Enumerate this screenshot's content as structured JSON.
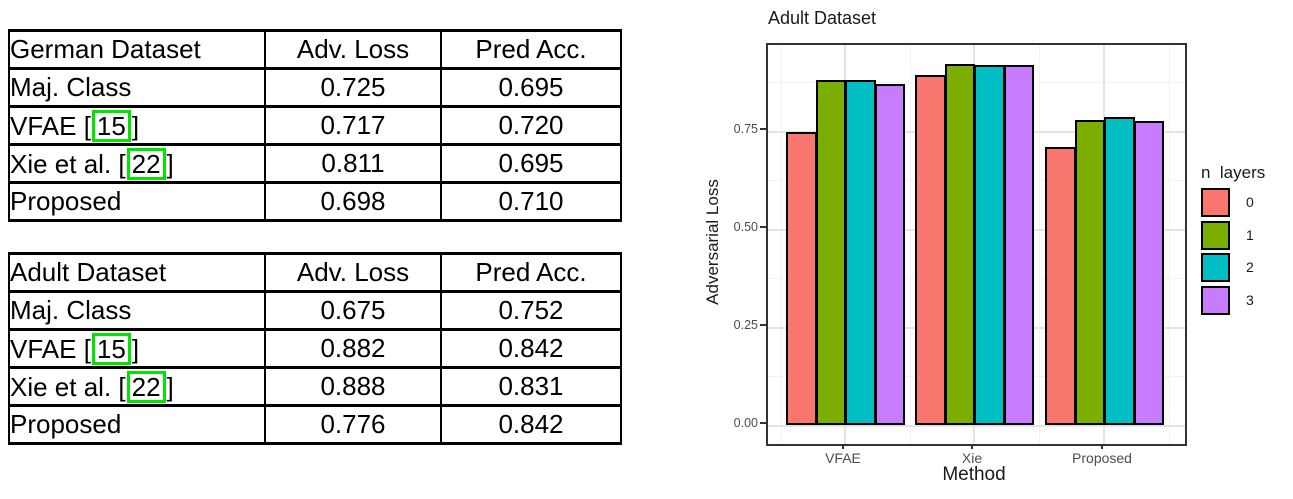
{
  "tables": [
    {
      "header": [
        "German Dataset",
        "Adv. Loss",
        "Pred Acc."
      ],
      "rows": [
        {
          "method_pre": "Maj. Class",
          "cite": "",
          "method_post": "",
          "adv": "0.725",
          "acc": "0.695"
        },
        {
          "method_pre": "VFAE [",
          "cite": "15",
          "method_post": "]",
          "adv": "0.717",
          "acc": "0.720"
        },
        {
          "method_pre": "Xie et al. [",
          "cite": "22",
          "method_post": "]",
          "adv": "0.811",
          "acc": "0.695"
        },
        {
          "method_pre": "Proposed",
          "cite": "",
          "method_post": "",
          "adv": "0.698",
          "acc": "0.710"
        }
      ]
    },
    {
      "header": [
        "Adult Dataset",
        "Adv. Loss",
        "Pred Acc."
      ],
      "rows": [
        {
          "method_pre": "Maj. Class",
          "cite": "",
          "method_post": "",
          "adv": "0.675",
          "acc": "0.752"
        },
        {
          "method_pre": "VFAE [",
          "cite": "15",
          "method_post": "]",
          "adv": "0.882",
          "acc": "0.842"
        },
        {
          "method_pre": "Xie et al. [",
          "cite": "22",
          "method_post": "]",
          "adv": "0.888",
          "acc": "0.831"
        },
        {
          "method_pre": "Proposed",
          "cite": "",
          "method_post": "",
          "adv": "0.776",
          "acc": "0.842"
        }
      ]
    }
  ],
  "chart_data": {
    "type": "bar",
    "title": "Adult Dataset",
    "xlabel": "Method",
    "ylabel": "Adversarial Loss",
    "categories": [
      "VFAE",
      "Xie",
      "Proposed"
    ],
    "legend_title": "n  layers",
    "legend_position": "right",
    "grid": true,
    "ylim": [
      0,
      0.97
    ],
    "yticks": [
      "0.00",
      "0.25",
      "0.50",
      "0.75"
    ],
    "ytick_values": [
      0,
      0.25,
      0.5,
      0.75
    ],
    "yminor_values": [
      0.125,
      0.375,
      0.625,
      0.875
    ],
    "series": [
      {
        "name": "0",
        "color": "#F8766D",
        "values": [
          0.747,
          0.893,
          0.709
        ]
      },
      {
        "name": "1",
        "color": "#7CAE00",
        "values": [
          0.88,
          0.921,
          0.778
        ]
      },
      {
        "name": "2",
        "color": "#00BFC4",
        "values": [
          0.879,
          0.918,
          0.785
        ]
      },
      {
        "name": "3",
        "color": "#C77CFF",
        "values": [
          0.871,
          0.918,
          0.776
        ]
      }
    ],
    "colors": {
      "cite_box": "#00e400",
      "bar_stroke": "#000000",
      "tick_text": "#4d4d4d"
    }
  }
}
